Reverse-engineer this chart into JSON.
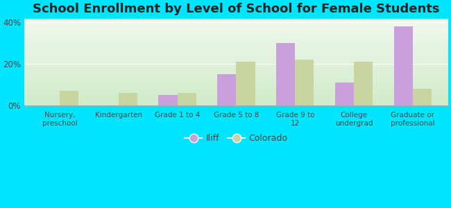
{
  "title": "School Enrollment by Level of School for Female Students",
  "categories": [
    "Nursery,\npreschool",
    "Kindergarten",
    "Grade 1 to 4",
    "Grade 5 to 8",
    "Grade 9 to\n12",
    "College\nundergrad",
    "Graduate or\nprofessional"
  ],
  "iliff_values": [
    0,
    0,
    5,
    15,
    30,
    11,
    38
  ],
  "colorado_values": [
    7,
    6,
    6,
    21,
    22,
    21,
    8
  ],
  "iliff_color": "#c9a0dc",
  "colorado_color": "#c8d5a0",
  "background_color": "#00e5ff",
  "plot_bg_top": "#f0f8ee",
  "plot_bg_bottom": "#d0ecc8",
  "ylim": [
    0,
    42
  ],
  "yticks": [
    0,
    20,
    40
  ],
  "ytick_labels": [
    "0%",
    "20%",
    "40%"
  ],
  "title_fontsize": 13,
  "legend_labels": [
    "Iliff",
    "Colorado"
  ],
  "bar_width": 0.32
}
